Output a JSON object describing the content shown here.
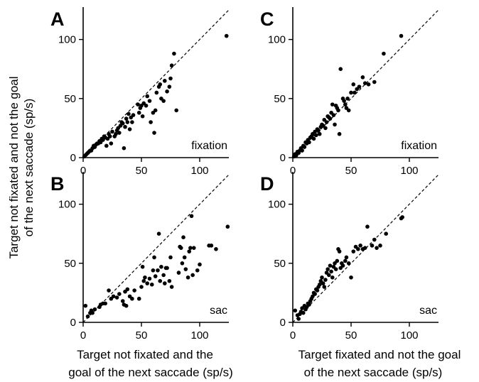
{
  "chart_data": [
    {
      "type": "scatter",
      "panel": "A",
      "label": "fixation",
      "xlim": [
        0,
        125
      ],
      "ylim": [
        0,
        125
      ],
      "xticks": [
        "0",
        "50",
        "100"
      ],
      "yticks": [
        "0",
        "50",
        "100"
      ],
      "reference_line": "y = x",
      "points": [
        [
          1,
          1
        ],
        [
          2,
          2
        ],
        [
          3,
          3
        ],
        [
          4,
          4
        ],
        [
          5,
          5
        ],
        [
          6,
          6
        ],
        [
          7,
          6
        ],
        [
          8,
          8
        ],
        [
          9,
          10
        ],
        [
          10,
          9
        ],
        [
          11,
          11
        ],
        [
          12,
          12
        ],
        [
          13,
          12
        ],
        [
          14,
          14
        ],
        [
          15,
          13
        ],
        [
          16,
          16
        ],
        [
          17,
          15
        ],
        [
          18,
          18
        ],
        [
          19,
          17
        ],
        [
          20,
          10
        ],
        [
          21,
          16
        ],
        [
          22,
          20
        ],
        [
          23,
          18
        ],
        [
          24,
          12
        ],
        [
          25,
          22
        ],
        [
          27,
          18
        ],
        [
          28,
          20
        ],
        [
          29,
          23
        ],
        [
          30,
          25
        ],
        [
          31,
          21
        ],
        [
          32,
          27
        ],
        [
          33,
          30
        ],
        [
          34,
          29
        ],
        [
          35,
          8
        ],
        [
          36,
          26
        ],
        [
          37,
          33
        ],
        [
          38,
          30
        ],
        [
          39,
          37
        ],
        [
          40,
          24
        ],
        [
          41,
          34
        ],
        [
          42,
          30
        ],
        [
          43,
          36
        ],
        [
          47,
          45
        ],
        [
          48,
          38
        ],
        [
          49,
          42
        ],
        [
          50,
          44
        ],
        [
          51,
          35
        ],
        [
          52,
          46
        ],
        [
          54,
          44
        ],
        [
          55,
          52
        ],
        [
          57,
          48
        ],
        [
          58,
          30
        ],
        [
          60,
          38
        ],
        [
          61,
          21
        ],
        [
          62,
          40
        ],
        [
          63,
          55
        ],
        [
          65,
          60
        ],
        [
          66,
          62
        ],
        [
          67,
          50
        ],
        [
          69,
          48
        ],
        [
          70,
          65
        ],
        [
          72,
          56
        ],
        [
          74,
          60
        ],
        [
          75,
          67
        ],
        [
          76,
          78
        ],
        [
          78,
          88
        ],
        [
          80,
          40
        ],
        [
          123,
          103
        ]
      ]
    },
    {
      "type": "scatter",
      "panel": "B",
      "label": "sac",
      "xlim": [
        0,
        125
      ],
      "ylim": [
        0,
        125
      ],
      "xticks": [
        "0",
        "50",
        "100"
      ],
      "yticks": [
        "0",
        "50",
        "100"
      ],
      "reference_line": "y = x",
      "points": [
        [
          2,
          14
        ],
        [
          4,
          5
        ],
        [
          6,
          8
        ],
        [
          7,
          10
        ],
        [
          8,
          8
        ],
        [
          10,
          11
        ],
        [
          14,
          13
        ],
        [
          15,
          15
        ],
        [
          17,
          16
        ],
        [
          19,
          16
        ],
        [
          22,
          27
        ],
        [
          24,
          20
        ],
        [
          26,
          22
        ],
        [
          29,
          21
        ],
        [
          31,
          24
        ],
        [
          34,
          18
        ],
        [
          35,
          15
        ],
        [
          36,
          26
        ],
        [
          37,
          14
        ],
        [
          38,
          28
        ],
        [
          40,
          22
        ],
        [
          42,
          20
        ],
        [
          44,
          27
        ],
        [
          48,
          20
        ],
        [
          50,
          30
        ],
        [
          51,
          47
        ],
        [
          52,
          35
        ],
        [
          53,
          38
        ],
        [
          55,
          33
        ],
        [
          57,
          37
        ],
        [
          59,
          32
        ],
        [
          60,
          44
        ],
        [
          61,
          55
        ],
        [
          62,
          39
        ],
        [
          64,
          44
        ],
        [
          65,
          75
        ],
        [
          66,
          35
        ],
        [
          67,
          47
        ],
        [
          69,
          40
        ],
        [
          70,
          33
        ],
        [
          71,
          46
        ],
        [
          72,
          46
        ],
        [
          74,
          35
        ],
        [
          75,
          55
        ],
        [
          76,
          30
        ],
        [
          82,
          42
        ],
        [
          83,
          64
        ],
        [
          84,
          63
        ],
        [
          85,
          50
        ],
        [
          86,
          72
        ],
        [
          87,
          55
        ],
        [
          88,
          45
        ],
        [
          90,
          38
        ],
        [
          91,
          60
        ],
        [
          92,
          63
        ],
        [
          93,
          90
        ],
        [
          94,
          40
        ],
        [
          95,
          63
        ],
        [
          98,
          44
        ],
        [
          100,
          49
        ],
        [
          108,
          65
        ],
        [
          110,
          65
        ],
        [
          114,
          62
        ],
        [
          124,
          81
        ]
      ]
    },
    {
      "type": "scatter",
      "panel": "C",
      "label": "fixation",
      "xlim": [
        0,
        125
      ],
      "ylim": [
        0,
        125
      ],
      "xticks": [
        "0",
        "50",
        "100"
      ],
      "yticks": [
        "0",
        "50",
        "100"
      ],
      "reference_line": "y = x",
      "points": [
        [
          1,
          1
        ],
        [
          2,
          3
        ],
        [
          3,
          2
        ],
        [
          4,
          5
        ],
        [
          5,
          4
        ],
        [
          6,
          6
        ],
        [
          7,
          8
        ],
        [
          8,
          6
        ],
        [
          9,
          10
        ],
        [
          10,
          9
        ],
        [
          11,
          13
        ],
        [
          12,
          12
        ],
        [
          13,
          15
        ],
        [
          14,
          13
        ],
        [
          15,
          17
        ],
        [
          16,
          18
        ],
        [
          17,
          20
        ],
        [
          18,
          16
        ],
        [
          19,
          22
        ],
        [
          20,
          19
        ],
        [
          21,
          24
        ],
        [
          22,
          23
        ],
        [
          23,
          20
        ],
        [
          24,
          26
        ],
        [
          25,
          28
        ],
        [
          26,
          27
        ],
        [
          27,
          32
        ],
        [
          28,
          25
        ],
        [
          29,
          30
        ],
        [
          30,
          35
        ],
        [
          31,
          34
        ],
        [
          32,
          33
        ],
        [
          33,
          38
        ],
        [
          34,
          45
        ],
        [
          35,
          36
        ],
        [
          36,
          28
        ],
        [
          37,
          44
        ],
        [
          38,
          42
        ],
        [
          39,
          40
        ],
        [
          40,
          20
        ],
        [
          41,
          75
        ],
        [
          43,
          50
        ],
        [
          44,
          48
        ],
        [
          45,
          45
        ],
        [
          46,
          42
        ],
        [
          47,
          50
        ],
        [
          48,
          40
        ],
        [
          50,
          55
        ],
        [
          52,
          62
        ],
        [
          53,
          55
        ],
        [
          55,
          58
        ],
        [
          57,
          60
        ],
        [
          60,
          68
        ],
        [
          62,
          63
        ],
        [
          65,
          62
        ],
        [
          70,
          64
        ],
        [
          78,
          88
        ],
        [
          93,
          103
        ]
      ]
    },
    {
      "type": "scatter",
      "panel": "D",
      "label": "sac",
      "xlim": [
        0,
        125
      ],
      "ylim": [
        0,
        125
      ],
      "xticks": [
        "0",
        "50",
        "100"
      ],
      "yticks": [
        "0",
        "50",
        "100"
      ],
      "reference_line": "y = x",
      "points": [
        [
          2,
          10
        ],
        [
          4,
          6
        ],
        [
          5,
          3
        ],
        [
          6,
          7
        ],
        [
          7,
          9
        ],
        [
          8,
          12
        ],
        [
          9,
          8
        ],
        [
          10,
          14
        ],
        [
          11,
          11
        ],
        [
          12,
          13
        ],
        [
          13,
          16
        ],
        [
          14,
          15
        ],
        [
          15,
          18
        ],
        [
          16,
          20
        ],
        [
          17,
          22
        ],
        [
          18,
          25
        ],
        [
          19,
          24
        ],
        [
          20,
          28
        ],
        [
          21,
          27
        ],
        [
          22,
          30
        ],
        [
          23,
          32
        ],
        [
          24,
          35
        ],
        [
          25,
          38
        ],
        [
          26,
          33
        ],
        [
          27,
          30
        ],
        [
          28,
          36
        ],
        [
          29,
          42
        ],
        [
          30,
          45
        ],
        [
          31,
          40
        ],
        [
          32,
          48
        ],
        [
          33,
          43
        ],
        [
          34,
          38
        ],
        [
          35,
          47
        ],
        [
          36,
          50
        ],
        [
          37,
          45
        ],
        [
          38,
          52
        ],
        [
          39,
          62
        ],
        [
          40,
          60
        ],
        [
          41,
          46
        ],
        [
          42,
          50
        ],
        [
          43,
          48
        ],
        [
          45,
          52
        ],
        [
          46,
          55
        ],
        [
          48,
          50
        ],
        [
          50,
          38
        ],
        [
          52,
          60
        ],
        [
          54,
          64
        ],
        [
          56,
          62
        ],
        [
          58,
          65
        ],
        [
          60,
          62
        ],
        [
          62,
          63
        ],
        [
          64,
          81
        ],
        [
          68,
          65
        ],
        [
          70,
          70
        ],
        [
          72,
          63
        ],
        [
          75,
          65
        ],
        [
          80,
          75
        ],
        [
          93,
          88
        ],
        [
          94,
          89
        ]
      ]
    }
  ],
  "axes": {
    "y_title_line1": "Target not fixated and not the goal",
    "y_title_line2": "of the next saccade (sp/s)",
    "x_title_left_line1": "Target not fixated and the",
    "x_title_left_line2": "goal of the next saccade (sp/s)",
    "x_title_right_line1": "Target fixated and not the goal",
    "x_title_right_line2": "of the next saccade (sp/s)"
  }
}
